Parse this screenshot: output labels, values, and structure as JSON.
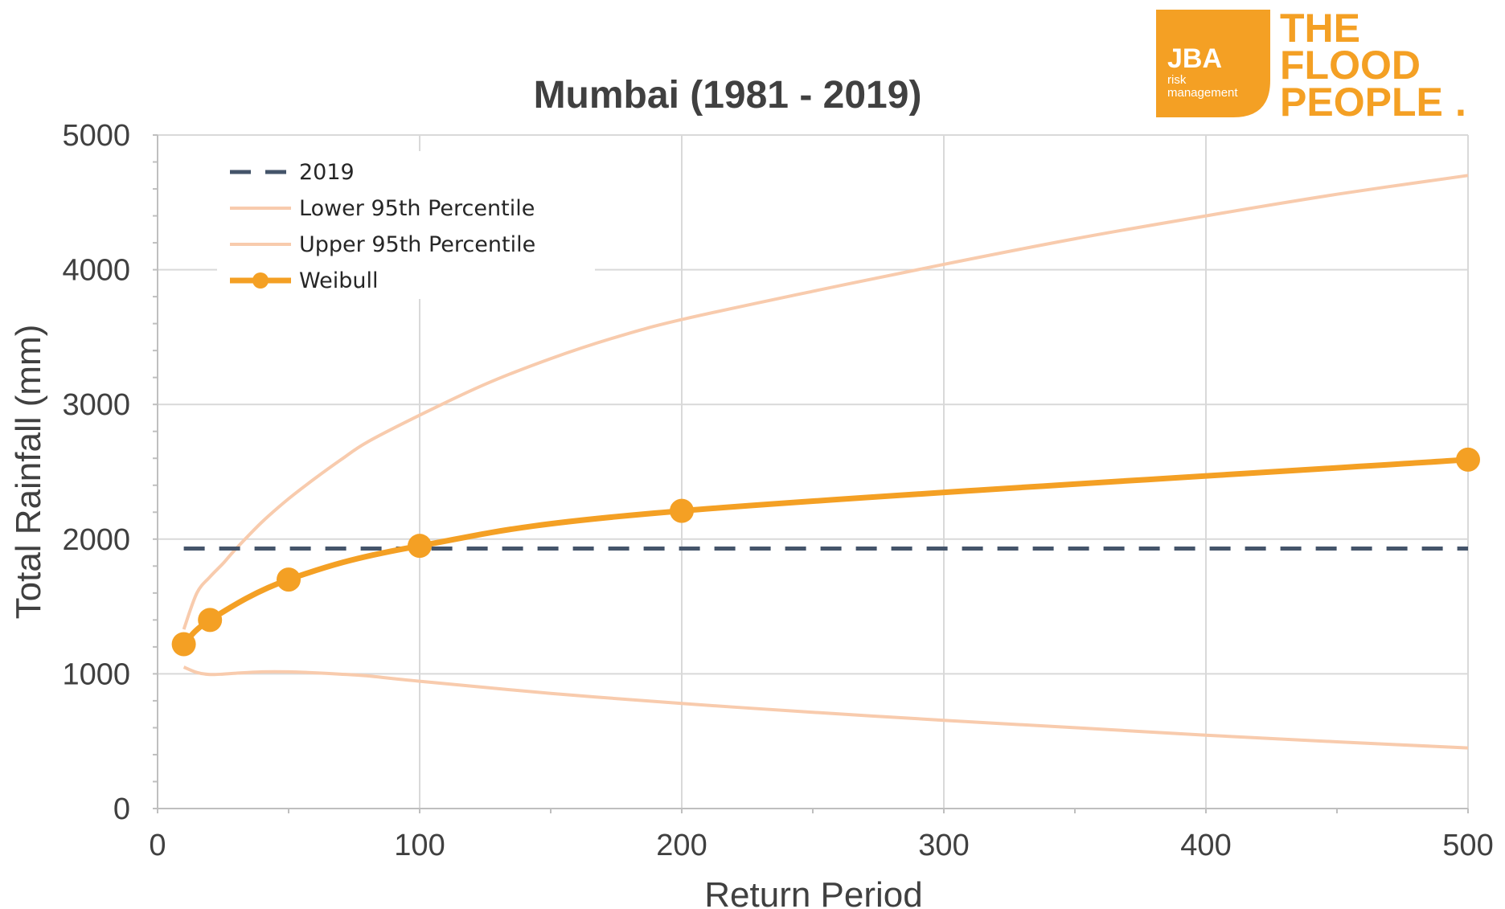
{
  "chart_data": {
    "type": "line",
    "title": "Mumbai (1981 - 2019)",
    "xlabel": "Return Period",
    "ylabel": "Total Rainfall (mm)",
    "xlim": [
      0,
      500
    ],
    "ylim": [
      0,
      5000
    ],
    "xticks": [
      0,
      100,
      200,
      300,
      400,
      500
    ],
    "yticks": [
      0,
      1000,
      2000,
      3000,
      4000,
      5000
    ],
    "grid": true,
    "legend_position": "top-left",
    "series": [
      {
        "name": "2019",
        "style": "dashed",
        "color": "#44546A",
        "x": [
          10,
          500
        ],
        "y": [
          1930,
          1930
        ]
      },
      {
        "name": "Lower 95th Percentile",
        "style": "solid",
        "color": "#F8CBAD",
        "x": [
          10,
          15,
          20,
          25,
          30,
          40,
          50,
          60,
          70,
          80,
          100,
          150,
          200,
          250,
          300,
          350,
          400,
          450,
          500
        ],
        "y": [
          1050,
          1010,
          995,
          998,
          1005,
          1015,
          1015,
          1008,
          997,
          985,
          945,
          855,
          780,
          715,
          655,
          600,
          545,
          495,
          450
        ]
      },
      {
        "name": "Upper 95th Percentile",
        "style": "solid",
        "color": "#F8CBAD",
        "x": [
          10,
          15,
          20,
          25,
          30,
          40,
          50,
          60,
          70,
          80,
          100,
          125,
          150,
          175,
          200,
          250,
          300,
          350,
          400,
          450,
          500
        ],
        "y": [
          1330,
          1600,
          1720,
          1820,
          1930,
          2130,
          2300,
          2450,
          2590,
          2720,
          2920,
          3150,
          3340,
          3500,
          3630,
          3840,
          4040,
          4230,
          4400,
          4560,
          4700
        ]
      },
      {
        "name": "Weibull",
        "style": "solid-markers",
        "color": "#F4A024",
        "x": [
          10,
          20,
          50,
          100,
          200,
          500
        ],
        "y": [
          1220,
          1400,
          1700,
          1950,
          2210,
          2590
        ]
      }
    ]
  },
  "logo": {
    "badge": "JBA",
    "badge_line1": "risk",
    "badge_line2": "management",
    "line1": "THE",
    "line2": "FLOOD",
    "line3": "PEOPLE",
    "mark": "."
  }
}
